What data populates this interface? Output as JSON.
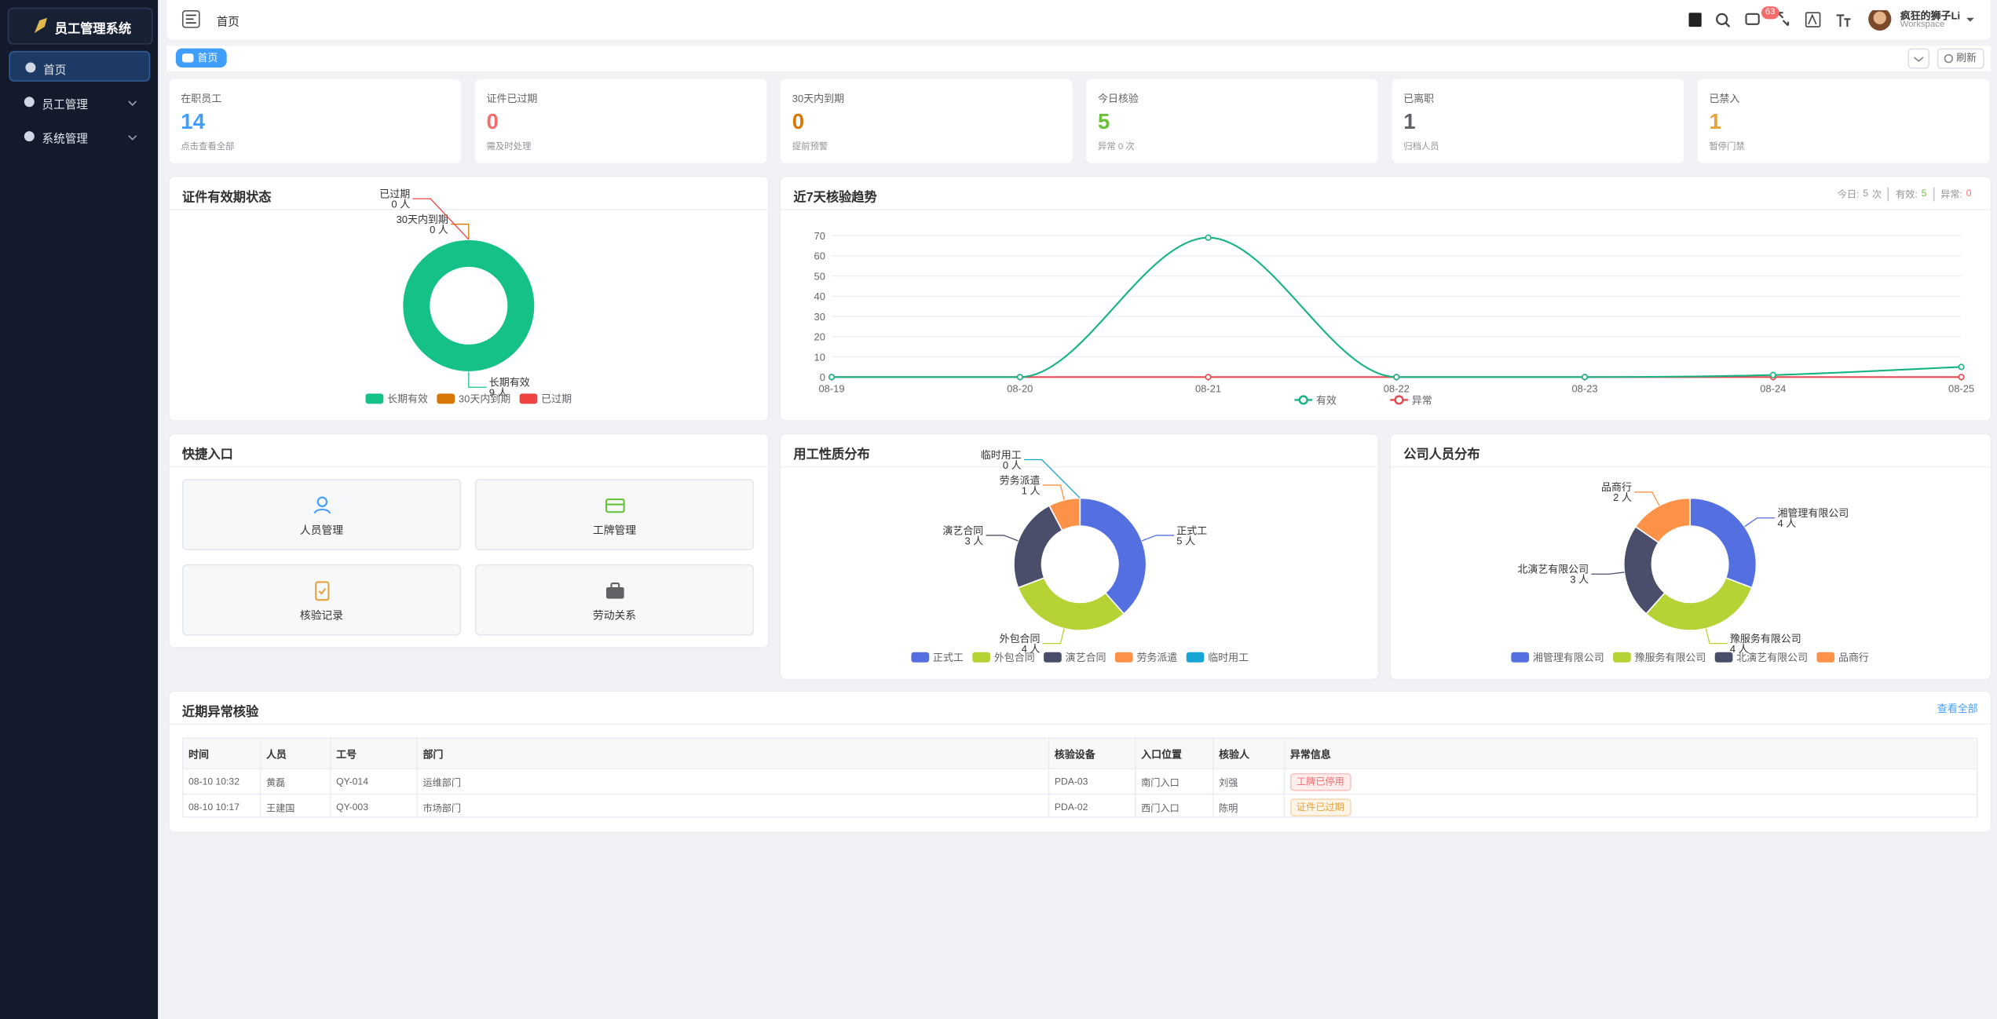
{
  "sidebar": {
    "title": "员工管理系统",
    "menu": [
      "首页",
      "员工管理",
      "系统管理"
    ]
  },
  "header": {
    "breadcrumb": "首页",
    "badge": "63",
    "user": "疯狂的狮子Li",
    "workspace": "Workspace"
  },
  "tabs": {
    "active": "首页",
    "refresh": "刷新"
  },
  "stats": [
    {
      "label": "在职员工",
      "value": 14,
      "note": "点击查看全部",
      "color": "#409eff"
    },
    {
      "label": "证件已过期",
      "value": 0,
      "note": "需及时处理",
      "color": "#f56c6c"
    },
    {
      "label": "30天内到期",
      "value": 0,
      "note": "提前预警",
      "color": "#d97706"
    },
    {
      "label": "今日核验",
      "value": 5,
      "note": "异常 0 次",
      "color": "#67c23a"
    },
    {
      "label": "已离职",
      "value": 1,
      "note": "归档人员",
      "color": "#606266"
    },
    {
      "label": "已禁入",
      "value": 1,
      "note": "暂停门禁",
      "color": "#e6a23c"
    }
  ],
  "cert_chart": {
    "type": "pie",
    "title": "证件有效期状态",
    "categories": [
      "长期有效",
      "30天内到期",
      "已过期"
    ],
    "values": [
      9,
      0,
      0
    ],
    "value_labels": [
      "9 人",
      "0 人",
      "0 人"
    ],
    "colors": [
      "#16c187",
      "#d97706",
      "#ef4444"
    ]
  },
  "trend_chart": {
    "type": "line",
    "title": "近7天核验趋势",
    "summary": [
      {
        "label": "今日:",
        "value": 5,
        "unit": "次"
      },
      {
        "label": "有效:",
        "value": 5,
        "color": "#67c23a"
      },
      {
        "label": "异常:",
        "value": 0,
        "color": "#f56c6c"
      }
    ],
    "categories": [
      "08-19",
      "08-20",
      "08-21",
      "08-22",
      "08-23",
      "08-24",
      "08-25"
    ],
    "series": [
      {
        "name": "有效",
        "color": "#16b383",
        "values": [
          0,
          0,
          69,
          0,
          0,
          1,
          5
        ]
      },
      {
        "name": "异常",
        "color": "#e5484d",
        "values": [
          0,
          0,
          0,
          0,
          0,
          0,
          0
        ]
      }
    ],
    "ylim": [
      0,
      70
    ],
    "yticks": [
      0,
      10,
      20,
      30,
      40,
      50,
      60,
      70
    ],
    "grid": true
  },
  "quick": {
    "title": "快捷入口",
    "items": [
      "人员管理",
      "工牌管理",
      "核验记录",
      "劳动关系"
    ]
  },
  "employment_chart": {
    "type": "pie",
    "title": "用工性质分布",
    "categories": [
      "正式工",
      "外包合同",
      "演艺合同",
      "劳务派遣",
      "临时用工"
    ],
    "values": [
      5,
      4,
      3,
      1,
      0
    ],
    "value_labels": [
      "5 人",
      "4 人",
      "3 人",
      "1 人",
      "0 人"
    ],
    "colors": [
      "#5470e0",
      "#b5d334",
      "#4a4e6b",
      "#fc9148",
      "#19a5d4"
    ]
  },
  "company_chart": {
    "type": "pie",
    "title": "公司人员分布",
    "categories": [
      "湘管理有限公司",
      "豫服务有限公司",
      "北演艺有限公司",
      "品商行"
    ],
    "values": [
      4,
      4,
      3,
      2
    ],
    "value_labels": [
      "4 人",
      "4 人",
      "3 人",
      "2 人"
    ],
    "colors": [
      "#5470e0",
      "#b5d334",
      "#4a4e6b",
      "#fc9148"
    ]
  },
  "table": {
    "title": "近期异常核验",
    "link": "查看全部",
    "columns": [
      "时间",
      "人员",
      "工号",
      "部门",
      "核验设备",
      "入口位置",
      "核验人",
      "异常信息"
    ],
    "rows": [
      [
        "08-10 10:32",
        "黄磊",
        "QY-014",
        "运维部门",
        "PDA-03",
        "南门入口",
        "刘强",
        "工牌已停用"
      ],
      [
        "08-10 10:17",
        "王建国",
        "QY-003",
        "市场部门",
        "PDA-02",
        "西门入口",
        "陈明",
        "证件已过期"
      ]
    ],
    "status_colors": [
      "#f56c6c",
      "#e6a23c"
    ]
  }
}
